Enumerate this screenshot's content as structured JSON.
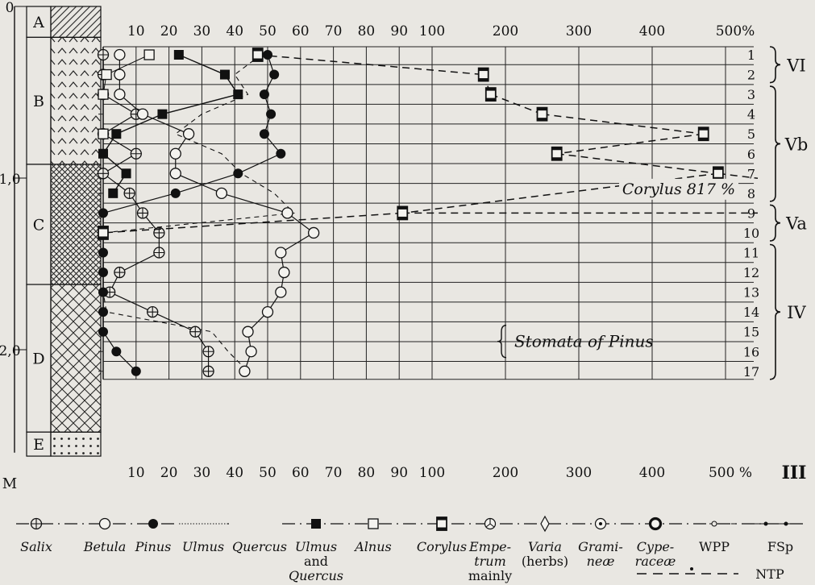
{
  "chart_data": {
    "type": "line",
    "title": "",
    "xlabel": "",
    "ylabel": "M",
    "depth_axis": {
      "unit": "M",
      "labels": [
        {
          "depth": 0,
          "text": "0"
        },
        {
          "depth": 1.0,
          "text": "1,0"
        },
        {
          "depth": 2.0,
          "text": "2,0"
        }
      ],
      "range": [
        0,
        2.6
      ]
    },
    "x_ticks_linear": [
      "10",
      "20",
      "30",
      "40",
      "50",
      "60",
      "70",
      "80",
      "90",
      "100"
    ],
    "x_ticks_extended": [
      "200",
      "300",
      "400",
      "500%"
    ],
    "x_ticks_bottom_linear": [
      "10",
      "20",
      "30",
      "40",
      "50",
      "60",
      "70",
      "80",
      "90",
      "100"
    ],
    "x_ticks_bottom_extended": [
      "200",
      "300",
      "400",
      "500 %"
    ],
    "xlim": [
      0,
      500
    ],
    "samples": [
      "1",
      "2",
      "3",
      "4",
      "5",
      "6",
      "7",
      "8",
      "9",
      "10",
      "11",
      "12",
      "13",
      "14",
      "15",
      "16",
      "17"
    ],
    "layers": [
      {
        "label": "A",
        "pattern": "hatch",
        "from_depth": 0.0,
        "to_depth": 0.18
      },
      {
        "label": "B",
        "pattern": "chevrons",
        "from_depth": 0.18,
        "to_depth": 0.92
      },
      {
        "label": "C",
        "pattern": "crosshatch-dense",
        "from_depth": 0.92,
        "to_depth": 1.62
      },
      {
        "label": "D",
        "pattern": "crosshatch",
        "from_depth": 1.62,
        "to_depth": 2.48
      },
      {
        "label": "E",
        "pattern": "dots",
        "from_depth": 2.48,
        "to_depth": 2.62
      }
    ],
    "zones": [
      {
        "label": "VI",
        "from_sample": 1,
        "to_sample": 2
      },
      {
        "label": "Vb",
        "from_sample": 3,
        "to_sample": 8
      },
      {
        "label": "Va",
        "from_sample": 9,
        "to_sample": 10
      },
      {
        "label": "IV",
        "from_sample": 11,
        "to_sample": 17
      },
      {
        "label": "III",
        "from_sample": 18,
        "to_sample": 18
      }
    ],
    "series": [
      {
        "name": "Salix",
        "values": [
          0,
          0,
          0,
          10,
          0,
          10,
          0,
          8,
          12,
          17,
          17,
          5,
          2,
          15,
          28,
          32,
          32
        ]
      },
      {
        "name": "Betula",
        "values": [
          5,
          5,
          5,
          12,
          26,
          22,
          22,
          36,
          56,
          64,
          54,
          55,
          54,
          50,
          44,
          45,
          43
        ]
      },
      {
        "name": "Pinus",
        "values": [
          50,
          52,
          49,
          51,
          49,
          54,
          41,
          22,
          0,
          0,
          0,
          0,
          0,
          0,
          0,
          4,
          10
        ]
      },
      {
        "name": "Ulmus and Quercus",
        "values": [
          23,
          37,
          41,
          18,
          4,
          0,
          7,
          3,
          null,
          null,
          null,
          null,
          null,
          null,
          null,
          null,
          null
        ]
      },
      {
        "name": "Alnus",
        "values": [
          14,
          1,
          0,
          null,
          0,
          null,
          null,
          null,
          null,
          null,
          null,
          null,
          null,
          null,
          null,
          null,
          null
        ]
      },
      {
        "name": "Corylus",
        "values": [
          47,
          170,
          180,
          250,
          470,
          270,
          490,
          null,
          91,
          0,
          null,
          null,
          null,
          null,
          null,
          null,
          null
        ]
      }
    ],
    "stomata_trend": [
      48,
      40,
      44,
      30,
      22,
      36,
      42,
      52,
      58,
      0,
      0,
      0,
      0,
      1,
      33,
      38,
      44
    ],
    "annotations": [
      {
        "text": "Corylus 817 %",
        "sample": 7.7
      },
      {
        "text": "Stomata of Pinus",
        "sample": 15.5
      }
    ]
  },
  "legend": [
    {
      "icon": "salix-marker",
      "label": "Salix"
    },
    {
      "icon": "betula-marker",
      "label": "Betula"
    },
    {
      "icon": "pinus-marker",
      "label": "Pinus"
    },
    {
      "icon": "ulmus-line",
      "label": "Ulmus"
    },
    {
      "icon": "quercus-line",
      "label": "Quercus"
    },
    {
      "icon": "ulmus-quercus-marker",
      "label": "Ulmus and Quercus"
    },
    {
      "icon": "alnus-marker",
      "label": "Alnus"
    },
    {
      "icon": "corylus-marker",
      "label": "Corylus"
    },
    {
      "icon": "empetrum-marker",
      "label": "Empetrum mainly"
    },
    {
      "icon": "varia-marker",
      "label": "Varia (herbs)"
    },
    {
      "icon": "gramineae-marker",
      "label": "Gramineæ"
    },
    {
      "icon": "cyperaceae-marker",
      "label": "Cyperaceæ"
    },
    {
      "icon": "wpp-line",
      "label": "WPP"
    },
    {
      "icon": "fsp-line",
      "label": "FSp"
    },
    {
      "icon": "ntp-line",
      "label": "NTP"
    }
  ]
}
